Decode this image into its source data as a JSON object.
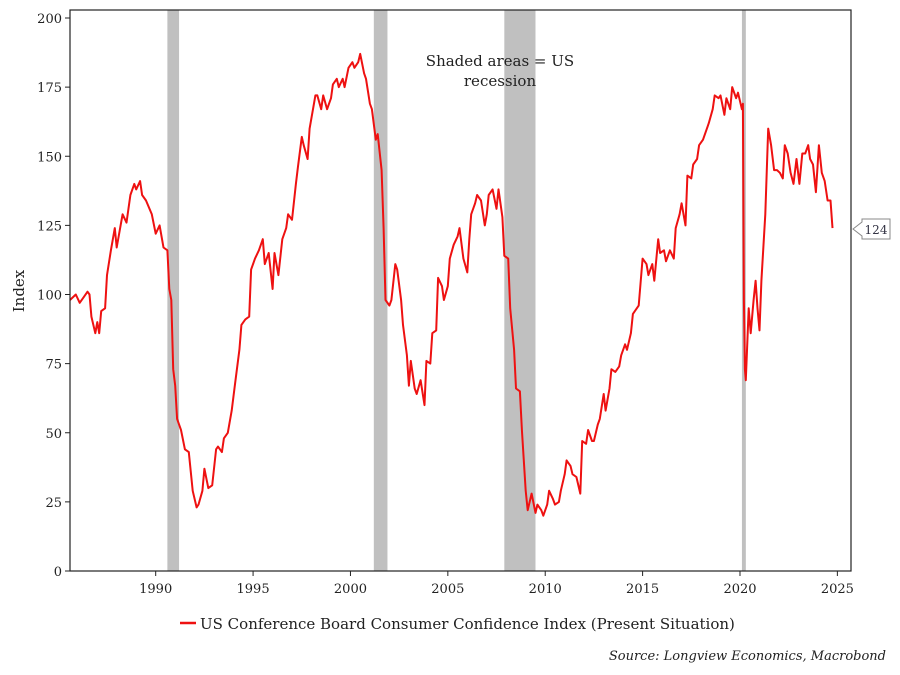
{
  "chart_data": {
    "type": "line",
    "ylabel": "Index",
    "xlim": [
      1985.6,
      2025.7
    ],
    "ylim": [
      0,
      200
    ],
    "xticks": [
      1990,
      1995,
      2000,
      2005,
      2010,
      2015,
      2020,
      2025
    ],
    "yticks": [
      0,
      25,
      50,
      75,
      100,
      125,
      150,
      175,
      200
    ],
    "grid": false,
    "legend_position": "bottom",
    "annotation": "Shaded areas = US recession",
    "annotation_lines": [
      "Shaded areas = US",
      "recession"
    ],
    "last_value_label": "124",
    "source": "Source: Longview Economics, Macrobond",
    "colors": {
      "series": "#ee1111",
      "recession": "#c0c0c0"
    },
    "recessions": [
      [
        1990.6,
        1991.2
      ],
      [
        2001.2,
        2001.9
      ],
      [
        2007.9,
        2009.5
      ],
      [
        2020.1,
        2020.3
      ]
    ],
    "series": [
      {
        "name": "US Conference Board Consumer Confidence Index (Present Situation)",
        "points": [
          [
            1985.6,
            98
          ],
          [
            1985.9,
            100
          ],
          [
            1986.1,
            97
          ],
          [
            1986.3,
            99
          ],
          [
            1986.5,
            101
          ],
          [
            1986.6,
            100
          ],
          [
            1986.7,
            92
          ],
          [
            1986.9,
            86
          ],
          [
            1987.0,
            90
          ],
          [
            1987.1,
            86
          ],
          [
            1987.2,
            94
          ],
          [
            1987.4,
            95
          ],
          [
            1987.5,
            107
          ],
          [
            1987.7,
            116
          ],
          [
            1987.9,
            124
          ],
          [
            1988.0,
            117
          ],
          [
            1988.2,
            125
          ],
          [
            1988.3,
            129
          ],
          [
            1988.5,
            126
          ],
          [
            1988.7,
            136
          ],
          [
            1988.9,
            140
          ],
          [
            1989.0,
            138
          ],
          [
            1989.2,
            141
          ],
          [
            1989.3,
            136
          ],
          [
            1989.5,
            134
          ],
          [
            1989.8,
            129
          ],
          [
            1990.0,
            122
          ],
          [
            1990.2,
            125
          ],
          [
            1990.4,
            117
          ],
          [
            1990.6,
            116
          ],
          [
            1990.7,
            102
          ],
          [
            1990.8,
            98
          ],
          [
            1990.9,
            73
          ],
          [
            1991.0,
            67
          ],
          [
            1991.1,
            55
          ],
          [
            1991.3,
            51
          ],
          [
            1991.5,
            44
          ],
          [
            1991.7,
            43
          ],
          [
            1991.9,
            29
          ],
          [
            1992.1,
            23
          ],
          [
            1992.2,
            24
          ],
          [
            1992.4,
            29
          ],
          [
            1992.5,
            37
          ],
          [
            1992.7,
            30
          ],
          [
            1992.9,
            31
          ],
          [
            1993.1,
            44
          ],
          [
            1993.2,
            45
          ],
          [
            1993.4,
            43
          ],
          [
            1993.5,
            48
          ],
          [
            1993.7,
            50
          ],
          [
            1993.9,
            58
          ],
          [
            1994.1,
            69
          ],
          [
            1994.3,
            80
          ],
          [
            1994.4,
            89
          ],
          [
            1994.6,
            91
          ],
          [
            1994.8,
            92
          ],
          [
            1994.9,
            109
          ],
          [
            1995.1,
            113
          ],
          [
            1995.3,
            116
          ],
          [
            1995.5,
            120
          ],
          [
            1995.6,
            111
          ],
          [
            1995.8,
            115
          ],
          [
            1996.0,
            102
          ],
          [
            1996.1,
            115
          ],
          [
            1996.3,
            107
          ],
          [
            1996.5,
            120
          ],
          [
            1996.7,
            124
          ],
          [
            1996.8,
            129
          ],
          [
            1997.0,
            127
          ],
          [
            1997.2,
            140
          ],
          [
            1997.3,
            146
          ],
          [
            1997.5,
            157
          ],
          [
            1997.6,
            154
          ],
          [
            1997.8,
            149
          ],
          [
            1997.9,
            160
          ],
          [
            1998.2,
            172
          ],
          [
            1998.3,
            172
          ],
          [
            1998.5,
            167
          ],
          [
            1998.6,
            172
          ],
          [
            1998.8,
            167
          ],
          [
            1999.0,
            171
          ],
          [
            1999.1,
            176
          ],
          [
            1999.3,
            178
          ],
          [
            1999.4,
            175
          ],
          [
            1999.6,
            178
          ],
          [
            1999.7,
            175
          ],
          [
            1999.9,
            182
          ],
          [
            2000.1,
            184
          ],
          [
            2000.2,
            182
          ],
          [
            2000.4,
            184
          ],
          [
            2000.5,
            187
          ],
          [
            2000.7,
            180
          ],
          [
            2000.8,
            178
          ],
          [
            2001.0,
            169
          ],
          [
            2001.1,
            167
          ],
          [
            2001.3,
            156
          ],
          [
            2001.4,
            158
          ],
          [
            2001.6,
            145
          ],
          [
            2001.7,
            124
          ],
          [
            2001.8,
            98
          ],
          [
            2002.0,
            96
          ],
          [
            2002.1,
            98
          ],
          [
            2002.3,
            111
          ],
          [
            2002.4,
            109
          ],
          [
            2002.6,
            98
          ],
          [
            2002.7,
            89
          ],
          [
            2002.9,
            78
          ],
          [
            2003.0,
            67
          ],
          [
            2003.1,
            76
          ],
          [
            2003.3,
            66
          ],
          [
            2003.4,
            64
          ],
          [
            2003.6,
            69
          ],
          [
            2003.8,
            60
          ],
          [
            2003.9,
            76
          ],
          [
            2004.1,
            75
          ],
          [
            2004.2,
            86
          ],
          [
            2004.4,
            87
          ],
          [
            2004.5,
            106
          ],
          [
            2004.7,
            103
          ],
          [
            2004.8,
            98
          ],
          [
            2005.0,
            103
          ],
          [
            2005.1,
            113
          ],
          [
            2005.3,
            118
          ],
          [
            2005.5,
            121
          ],
          [
            2005.6,
            124
          ],
          [
            2005.8,
            113
          ],
          [
            2006.0,
            108
          ],
          [
            2006.1,
            120
          ],
          [
            2006.2,
            129
          ],
          [
            2006.4,
            133
          ],
          [
            2006.5,
            136
          ],
          [
            2006.7,
            134
          ],
          [
            2006.9,
            125
          ],
          [
            2007.0,
            129
          ],
          [
            2007.1,
            136
          ],
          [
            2007.3,
            138
          ],
          [
            2007.5,
            131
          ],
          [
            2007.6,
            138
          ],
          [
            2007.8,
            128
          ],
          [
            2007.9,
            114
          ],
          [
            2008.1,
            113
          ],
          [
            2008.2,
            95
          ],
          [
            2008.4,
            80
          ],
          [
            2008.5,
            66
          ],
          [
            2008.7,
            65
          ],
          [
            2008.8,
            51
          ],
          [
            2009.0,
            29
          ],
          [
            2009.1,
            22
          ],
          [
            2009.3,
            28
          ],
          [
            2009.5,
            21
          ],
          [
            2009.6,
            24
          ],
          [
            2009.8,
            22
          ],
          [
            2009.9,
            20
          ],
          [
            2010.1,
            24
          ],
          [
            2010.2,
            29
          ],
          [
            2010.4,
            26
          ],
          [
            2010.5,
            24
          ],
          [
            2010.7,
            25
          ],
          [
            2010.8,
            29
          ],
          [
            2011.0,
            35
          ],
          [
            2011.1,
            40
          ],
          [
            2011.3,
            38
          ],
          [
            2011.4,
            35
          ],
          [
            2011.6,
            34
          ],
          [
            2011.8,
            28
          ],
          [
            2011.9,
            47
          ],
          [
            2012.1,
            46
          ],
          [
            2012.2,
            51
          ],
          [
            2012.4,
            47
          ],
          [
            2012.5,
            47
          ],
          [
            2012.7,
            53
          ],
          [
            2012.8,
            55
          ],
          [
            2013.0,
            64
          ],
          [
            2013.1,
            58
          ],
          [
            2013.3,
            66
          ],
          [
            2013.4,
            73
          ],
          [
            2013.6,
            72
          ],
          [
            2013.8,
            74
          ],
          [
            2013.9,
            78
          ],
          [
            2014.1,
            82
          ],
          [
            2014.2,
            80
          ],
          [
            2014.4,
            86
          ],
          [
            2014.5,
            93
          ],
          [
            2014.7,
            95
          ],
          [
            2014.8,
            96
          ],
          [
            2015.0,
            113
          ],
          [
            2015.2,
            111
          ],
          [
            2015.3,
            107
          ],
          [
            2015.5,
            111
          ],
          [
            2015.6,
            105
          ],
          [
            2015.8,
            120
          ],
          [
            2015.9,
            115
          ],
          [
            2016.1,
            116
          ],
          [
            2016.2,
            112
          ],
          [
            2016.4,
            116
          ],
          [
            2016.6,
            113
          ],
          [
            2016.7,
            124
          ],
          [
            2016.9,
            129
          ],
          [
            2017.0,
            133
          ],
          [
            2017.2,
            125
          ],
          [
            2017.3,
            143
          ],
          [
            2017.5,
            142
          ],
          [
            2017.6,
            147
          ],
          [
            2017.8,
            149
          ],
          [
            2017.9,
            154
          ],
          [
            2018.1,
            156
          ],
          [
            2018.3,
            160
          ],
          [
            2018.4,
            162
          ],
          [
            2018.6,
            167
          ],
          [
            2018.7,
            172
          ],
          [
            2018.9,
            171
          ],
          [
            2019.0,
            172
          ],
          [
            2019.2,
            165
          ],
          [
            2019.3,
            171
          ],
          [
            2019.5,
            167
          ],
          [
            2019.6,
            175
          ],
          [
            2019.8,
            171
          ],
          [
            2019.9,
            173
          ],
          [
            2020.1,
            167
          ],
          [
            2020.15,
            169
          ],
          [
            2020.2,
            98
          ],
          [
            2020.25,
            73
          ],
          [
            2020.3,
            69
          ],
          [
            2020.45,
            95
          ],
          [
            2020.55,
            86
          ],
          [
            2020.7,
            98
          ],
          [
            2020.8,
            105
          ],
          [
            2020.9,
            95
          ],
          [
            2021.0,
            87
          ],
          [
            2021.1,
            105
          ],
          [
            2021.3,
            129
          ],
          [
            2021.45,
            160
          ],
          [
            2021.6,
            154
          ],
          [
            2021.75,
            145
          ],
          [
            2021.9,
            145
          ],
          [
            2022.05,
            144
          ],
          [
            2022.2,
            142
          ],
          [
            2022.3,
            154
          ],
          [
            2022.45,
            151
          ],
          [
            2022.6,
            144
          ],
          [
            2022.75,
            140
          ],
          [
            2022.9,
            149
          ],
          [
            2023.05,
            140
          ],
          [
            2023.2,
            151
          ],
          [
            2023.35,
            151
          ],
          [
            2023.5,
            154
          ],
          [
            2023.6,
            149
          ],
          [
            2023.75,
            147
          ],
          [
            2023.9,
            137
          ],
          [
            2024.05,
            154
          ],
          [
            2024.2,
            144
          ],
          [
            2024.35,
            141
          ],
          [
            2024.5,
            134
          ],
          [
            2024.65,
            134
          ],
          [
            2024.75,
            124
          ]
        ]
      }
    ]
  }
}
